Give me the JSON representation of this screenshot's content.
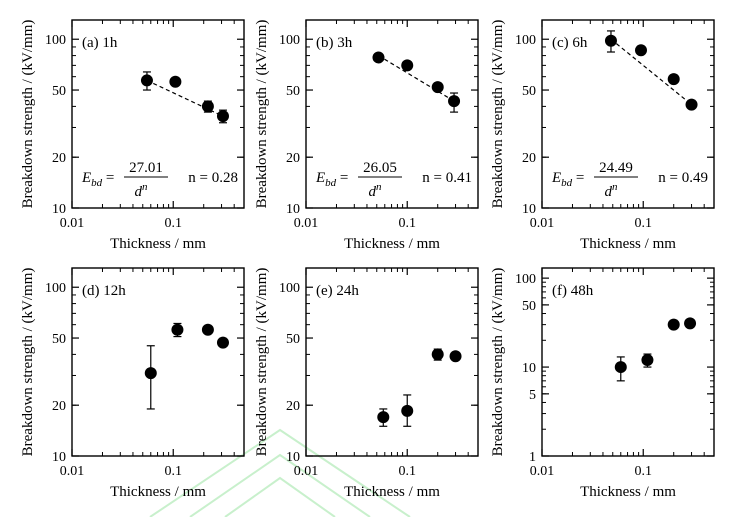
{
  "figure_type": "log-log breakdown strength vs thickness",
  "chart_data": [
    {
      "type": "scatter",
      "id": "a",
      "panel_label": "(a) 1h",
      "xlabel": "Thickness / mm",
      "ylabel": "Breakdown strength / (kV/mm)",
      "xscale": "log",
      "yscale": "log",
      "xlim": [
        0.01,
        0.5
      ],
      "ylim": [
        10,
        130
      ],
      "xticks": [
        0.01,
        0.1
      ],
      "xtick_labels": [
        "0.01",
        "0.1"
      ],
      "yticks": [
        10,
        20,
        50,
        100
      ],
      "ytick_labels": [
        "10",
        "20",
        "50",
        "100"
      ],
      "x": [
        0.055,
        0.105,
        0.22,
        0.31
      ],
      "y": [
        57,
        56,
        40,
        35
      ],
      "yerr_low": [
        50,
        null,
        37,
        32
      ],
      "yerr_high": [
        64,
        null,
        43,
        38
      ],
      "fit_line": {
        "x": [
          0.055,
          0.31
        ],
        "y": [
          57,
          35
        ]
      },
      "equation": {
        "lhs": "E",
        "sub": "bd",
        "numerator": "27.01",
        "denominator": "d",
        "exponent": "n",
        "n_text": "n = 0.28"
      }
    },
    {
      "type": "scatter",
      "id": "b",
      "panel_label": "(b) 3h",
      "xlabel": "Thickness / mm",
      "ylabel": "Breakdown strength / (kV/mm)",
      "xscale": "log",
      "yscale": "log",
      "xlim": [
        0.01,
        0.5
      ],
      "ylim": [
        10,
        130
      ],
      "xticks": [
        0.01,
        0.1
      ],
      "xtick_labels": [
        "0.01",
        "0.1"
      ],
      "yticks": [
        10,
        20,
        50,
        100
      ],
      "ytick_labels": [
        "10",
        "20",
        "50",
        "100"
      ],
      "x": [
        0.052,
        0.1,
        0.2,
        0.29
      ],
      "y": [
        78,
        70,
        52,
        43
      ],
      "yerr_low": [
        null,
        null,
        null,
        37
      ],
      "yerr_high": [
        null,
        null,
        null,
        48
      ],
      "fit_line": {
        "x": [
          0.052,
          0.29
        ],
        "y": [
          80,
          43
        ]
      },
      "equation": {
        "lhs": "E",
        "sub": "bd",
        "numerator": "26.05",
        "denominator": "d",
        "exponent": "n",
        "n_text": "n = 0.41"
      }
    },
    {
      "type": "scatter",
      "id": "c",
      "panel_label": "(c) 6h",
      "xlabel": "Thickness / mm",
      "ylabel": "Breakdown strength / (kV/mm)",
      "xscale": "log",
      "yscale": "log",
      "xlim": [
        0.01,
        0.5
      ],
      "ylim": [
        10,
        130
      ],
      "xticks": [
        0.01,
        0.1
      ],
      "xtick_labels": [
        "0.01",
        "0.1"
      ],
      "yticks": [
        10,
        20,
        50,
        100
      ],
      "ytick_labels": [
        "10",
        "20",
        "50",
        "100"
      ],
      "x": [
        0.048,
        0.095,
        0.2,
        0.3
      ],
      "y": [
        98,
        86,
        58,
        41
      ],
      "yerr_low": [
        84,
        null,
        null,
        null
      ],
      "yerr_high": [
        112,
        null,
        null,
        null
      ],
      "fit_line": {
        "x": [
          0.048,
          0.3
        ],
        "y": [
          100,
          41
        ]
      },
      "equation": {
        "lhs": "E",
        "sub": "bd",
        "numerator": "24.49",
        "denominator": "d",
        "exponent": "n",
        "n_text": "n = 0.49"
      }
    },
    {
      "type": "scatter",
      "id": "d",
      "panel_label": "(d) 12h",
      "xlabel": "Thickness / mm",
      "ylabel": "Breakdown strength / (kV/mm)",
      "xscale": "log",
      "yscale": "log",
      "xlim": [
        0.01,
        0.5
      ],
      "ylim": [
        10,
        130
      ],
      "xticks": [
        0.01,
        0.1
      ],
      "xtick_labels": [
        "0.01",
        "0.1"
      ],
      "yticks": [
        10,
        20,
        50,
        100
      ],
      "ytick_labels": [
        "10",
        "20",
        "50",
        "100"
      ],
      "x": [
        0.06,
        0.11,
        0.22,
        0.31
      ],
      "y": [
        31,
        56,
        56,
        47
      ],
      "yerr_low": [
        19,
        51,
        null,
        null
      ],
      "yerr_high": [
        45,
        61,
        null,
        null
      ],
      "fit_line": null,
      "equation": null
    },
    {
      "type": "scatter",
      "id": "e",
      "panel_label": "(e) 24h",
      "xlabel": "Thickness / mm",
      "ylabel": "Breakdown strength / (kV/mm)",
      "xscale": "log",
      "yscale": "log",
      "xlim": [
        0.01,
        0.5
      ],
      "ylim": [
        10,
        130
      ],
      "xticks": [
        0.01,
        0.1
      ],
      "xtick_labels": [
        "0.01",
        "0.1"
      ],
      "yticks": [
        10,
        20,
        50,
        100
      ],
      "ytick_labels": [
        "10",
        "20",
        "50",
        "100"
      ],
      "x": [
        0.058,
        0.1,
        0.2,
        0.3
      ],
      "y": [
        17,
        18.5,
        40,
        39
      ],
      "yerr_low": [
        15,
        15,
        37,
        null
      ],
      "yerr_high": [
        19,
        23,
        43,
        null
      ],
      "fit_line": null,
      "equation": null
    },
    {
      "type": "scatter",
      "id": "f",
      "panel_label": "(f) 48h",
      "xlabel": "Thickness / mm",
      "ylabel": "Breakdown strength / (kV/mm)",
      "xscale": "log",
      "yscale": "log",
      "xlim": [
        0.01,
        0.5
      ],
      "ylim": [
        1,
        130
      ],
      "xticks": [
        0.01,
        0.1
      ],
      "xtick_labels": [
        "0.01",
        "0.1"
      ],
      "yticks": [
        1,
        5,
        10,
        50,
        100
      ],
      "ytick_labels": [
        "1",
        "5",
        "10",
        "50",
        "100"
      ],
      "x": [
        0.06,
        0.11,
        0.2,
        0.29
      ],
      "y": [
        10,
        12,
        30,
        31
      ],
      "yerr_low": [
        7,
        10,
        null,
        null
      ],
      "yerr_high": [
        13,
        14,
        null,
        null
      ],
      "fit_line": null,
      "equation": null
    }
  ]
}
